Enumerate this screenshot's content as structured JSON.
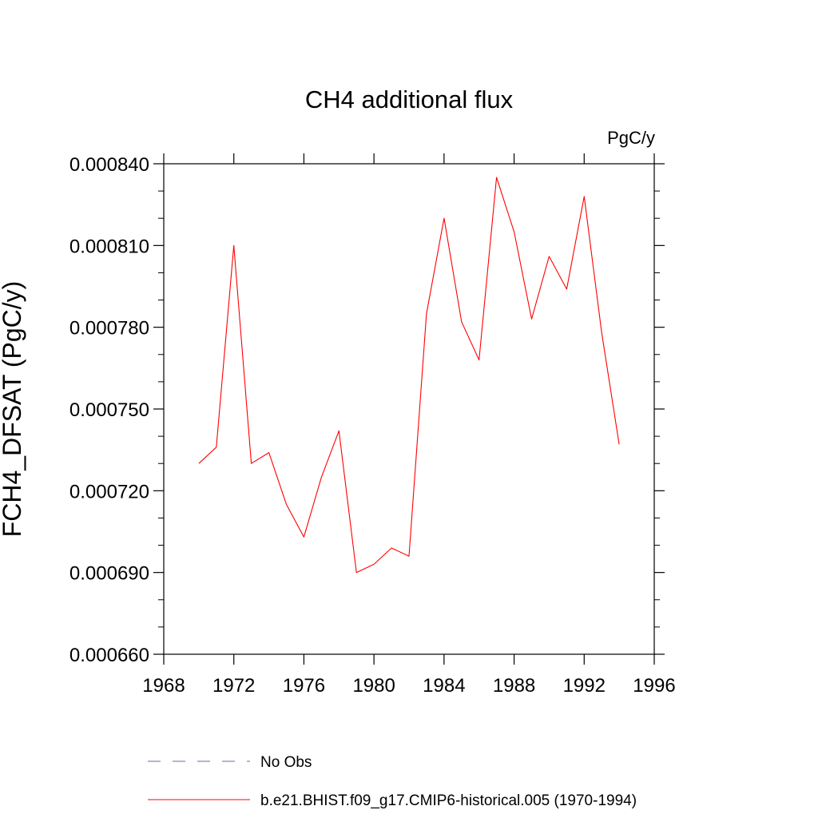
{
  "chart_data": {
    "type": "line",
    "title": "CH4 additional flux",
    "units_label": "PgC/y",
    "xlabel": "",
    "ylabel": "FCH4_DFSAT  (PgC/y)",
    "xlim": [
      1968,
      1996
    ],
    "ylim": [
      0.00066,
      0.00084
    ],
    "x_ticks": [
      1968,
      1972,
      1976,
      1980,
      1984,
      1988,
      1992,
      1996
    ],
    "x_tick_labels": [
      "1968",
      "1972",
      "1976",
      "1980",
      "1984",
      "1988",
      "1992",
      "1996"
    ],
    "y_ticks": [
      0.00066,
      0.00069,
      0.00072,
      0.00075,
      0.00078,
      0.00081,
      0.00084
    ],
    "y_tick_labels": [
      "0.000660",
      "0.000690",
      "0.000720",
      "0.000750",
      "0.000780",
      "0.000810",
      "0.000840"
    ],
    "grid": false,
    "legend_position": "bottom",
    "legend": [
      {
        "name": "No Obs",
        "color": "#6a6aa8",
        "dash": true
      },
      {
        "name": "b.e21.BHIST.f09_g17.CMIP6-historical.005 (1970-1994)",
        "color": "#ff0000",
        "dash": false
      }
    ],
    "series": [
      {
        "name": "b.e21.BHIST.f09_g17.CMIP6-historical.005 (1970-1994)",
        "color": "#ff0000",
        "x": [
          1970,
          1971,
          1972,
          1973,
          1974,
          1975,
          1976,
          1977,
          1978,
          1979,
          1980,
          1981,
          1982,
          1983,
          1984,
          1985,
          1986,
          1987,
          1988,
          1989,
          1990,
          1991,
          1992,
          1993,
          1994
        ],
        "y": [
          0.00073,
          0.000736,
          0.00081,
          0.00073,
          0.000734,
          0.000715,
          0.000703,
          0.000725,
          0.000742,
          0.00069,
          0.000693,
          0.000699,
          0.000696,
          0.000785,
          0.00082,
          0.000782,
          0.000768,
          0.000835,
          0.000815,
          0.000783,
          0.000806,
          0.000794,
          0.000828,
          0.000778,
          0.000737
        ]
      }
    ]
  }
}
